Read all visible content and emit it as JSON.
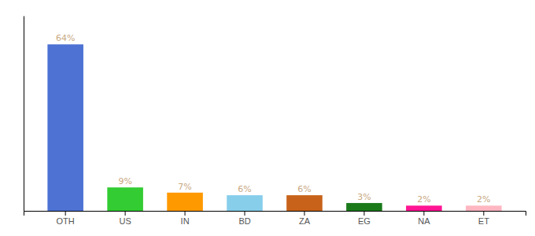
{
  "chart_data": {
    "type": "bar",
    "categories": [
      "OTH",
      "US",
      "IN",
      "BD",
      "ZA",
      "EG",
      "NA",
      "ET"
    ],
    "values": [
      64,
      9,
      7,
      6,
      6,
      3,
      2,
      2
    ],
    "value_labels": [
      "64%",
      "9%",
      "7%",
      "6%",
      "6%",
      "3%",
      "2%",
      "2%"
    ],
    "colors": [
      "#4d72d4",
      "#33cc33",
      "#FF9900",
      "#87CEEB",
      "#c8621a",
      "#1a7a1a",
      "#FF1493",
      "#FFB6C1"
    ],
    "ylim": [
      0,
      75
    ],
    "data_labels": true,
    "tick_labels": "x",
    "grid": false
  }
}
